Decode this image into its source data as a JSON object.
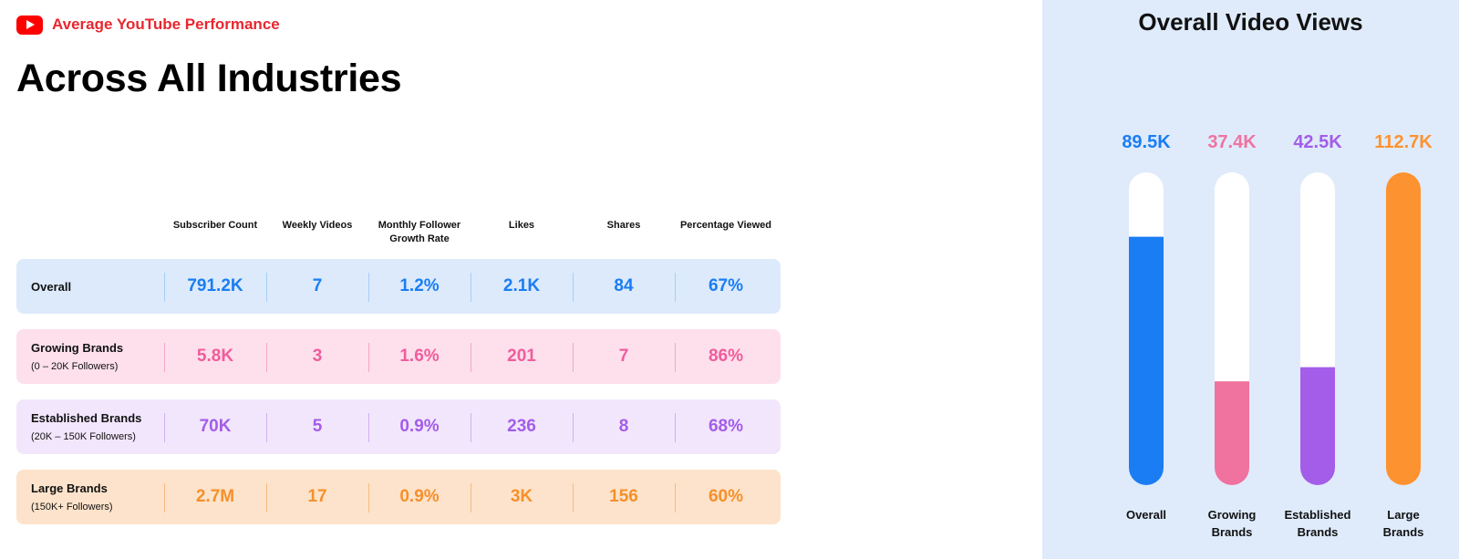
{
  "header": {
    "brand_label": "Average YouTube Performance",
    "page_title": "Across All Industries"
  },
  "table": {
    "columns": [
      "Subscriber Count",
      "Weekly Videos",
      "Monthly Follower Growth Rate",
      "Likes",
      "Shares",
      "Percentage Viewed"
    ],
    "rows": [
      {
        "name": "Overall",
        "sub": "",
        "values": [
          "791.2K",
          "7",
          "1.2%",
          "2.1K",
          "84",
          "67%"
        ],
        "bg": "#dceafb",
        "color": "#1a7df4",
        "divider": "#a9cdf6"
      },
      {
        "name": "Growing Brands",
        "sub": "(0 – 20K Followers)",
        "values": [
          "5.8K",
          "3",
          "1.6%",
          "201",
          "7",
          "86%"
        ],
        "bg": "#fde0ec",
        "color": "#f05c9c",
        "divider": "#f5a6c8"
      },
      {
        "name": "Established Brands",
        "sub": "(20K – 150K Followers)",
        "values": [
          "70K",
          "5",
          "0.9%",
          "236",
          "8",
          "68%"
        ],
        "bg": "#f2e6fc",
        "color": "#a35de8",
        "divider": "#d0b0f2"
      },
      {
        "name": "Large Brands",
        "sub": "(150K+ Followers)",
        "values": [
          "2.7M",
          "17",
          "0.9%",
          "3K",
          "156",
          "60%"
        ],
        "bg": "#fde3cb",
        "color": "#f5902b",
        "divider": "#f6bb80"
      }
    ]
  },
  "chart_data": {
    "type": "bar",
    "title": "Overall Video Views",
    "categories": [
      "Overall",
      "Growing Brands",
      "Established Brands",
      "Large Brands"
    ],
    "category_lines": [
      [
        "Overall"
      ],
      [
        "Growing",
        "Brands"
      ],
      [
        "Established",
        "Brands"
      ],
      [
        "Large",
        "Brands"
      ]
    ],
    "values": [
      89500,
      37400,
      42500,
      112700
    ],
    "value_labels": [
      "89.5K",
      "37.4K",
      "42.5K",
      "112.7K"
    ],
    "colors": [
      "#1a7df4",
      "#f0729f",
      "#a35de8",
      "#fd9230"
    ],
    "ylim": [
      0,
      112700
    ],
    "grid": false
  }
}
